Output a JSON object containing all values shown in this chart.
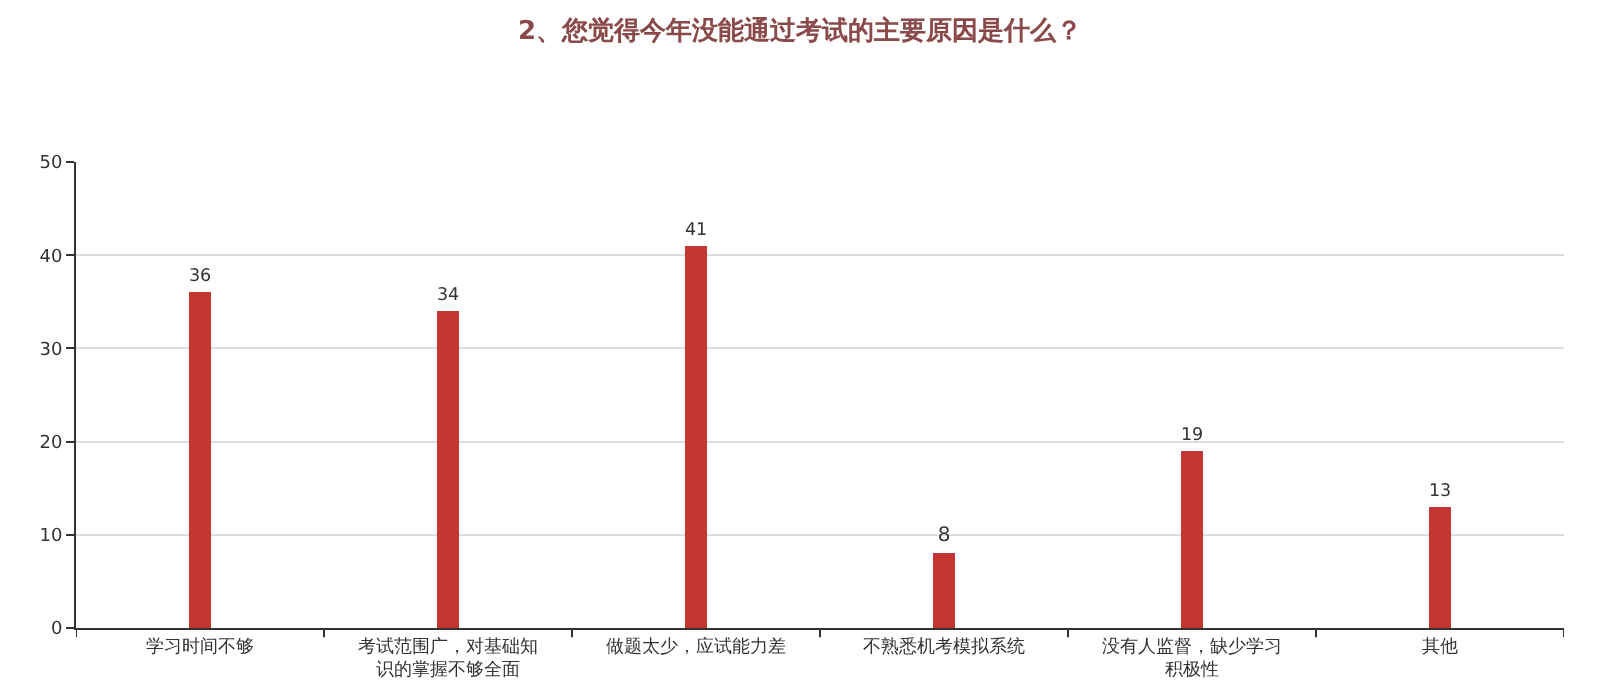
{
  "chart_data": {
    "type": "bar",
    "title": "2、您觉得今年没能通过考试的主要原因是什么？",
    "categories": [
      "学习时间不够",
      "考试范围广，对基础知识的掌握不够全面",
      "做题太少，应试能力差",
      "不熟悉机考模拟系统",
      "没有人监督，缺少学习积极性",
      "其他"
    ],
    "values": [
      36,
      34,
      41,
      8,
      19,
      13
    ],
    "color": "#c23531",
    "data_labels": true,
    "ylim": [
      0,
      50
    ],
    "yticks": [
      0,
      10,
      20,
      30,
      40,
      50
    ],
    "grid": "y"
  }
}
